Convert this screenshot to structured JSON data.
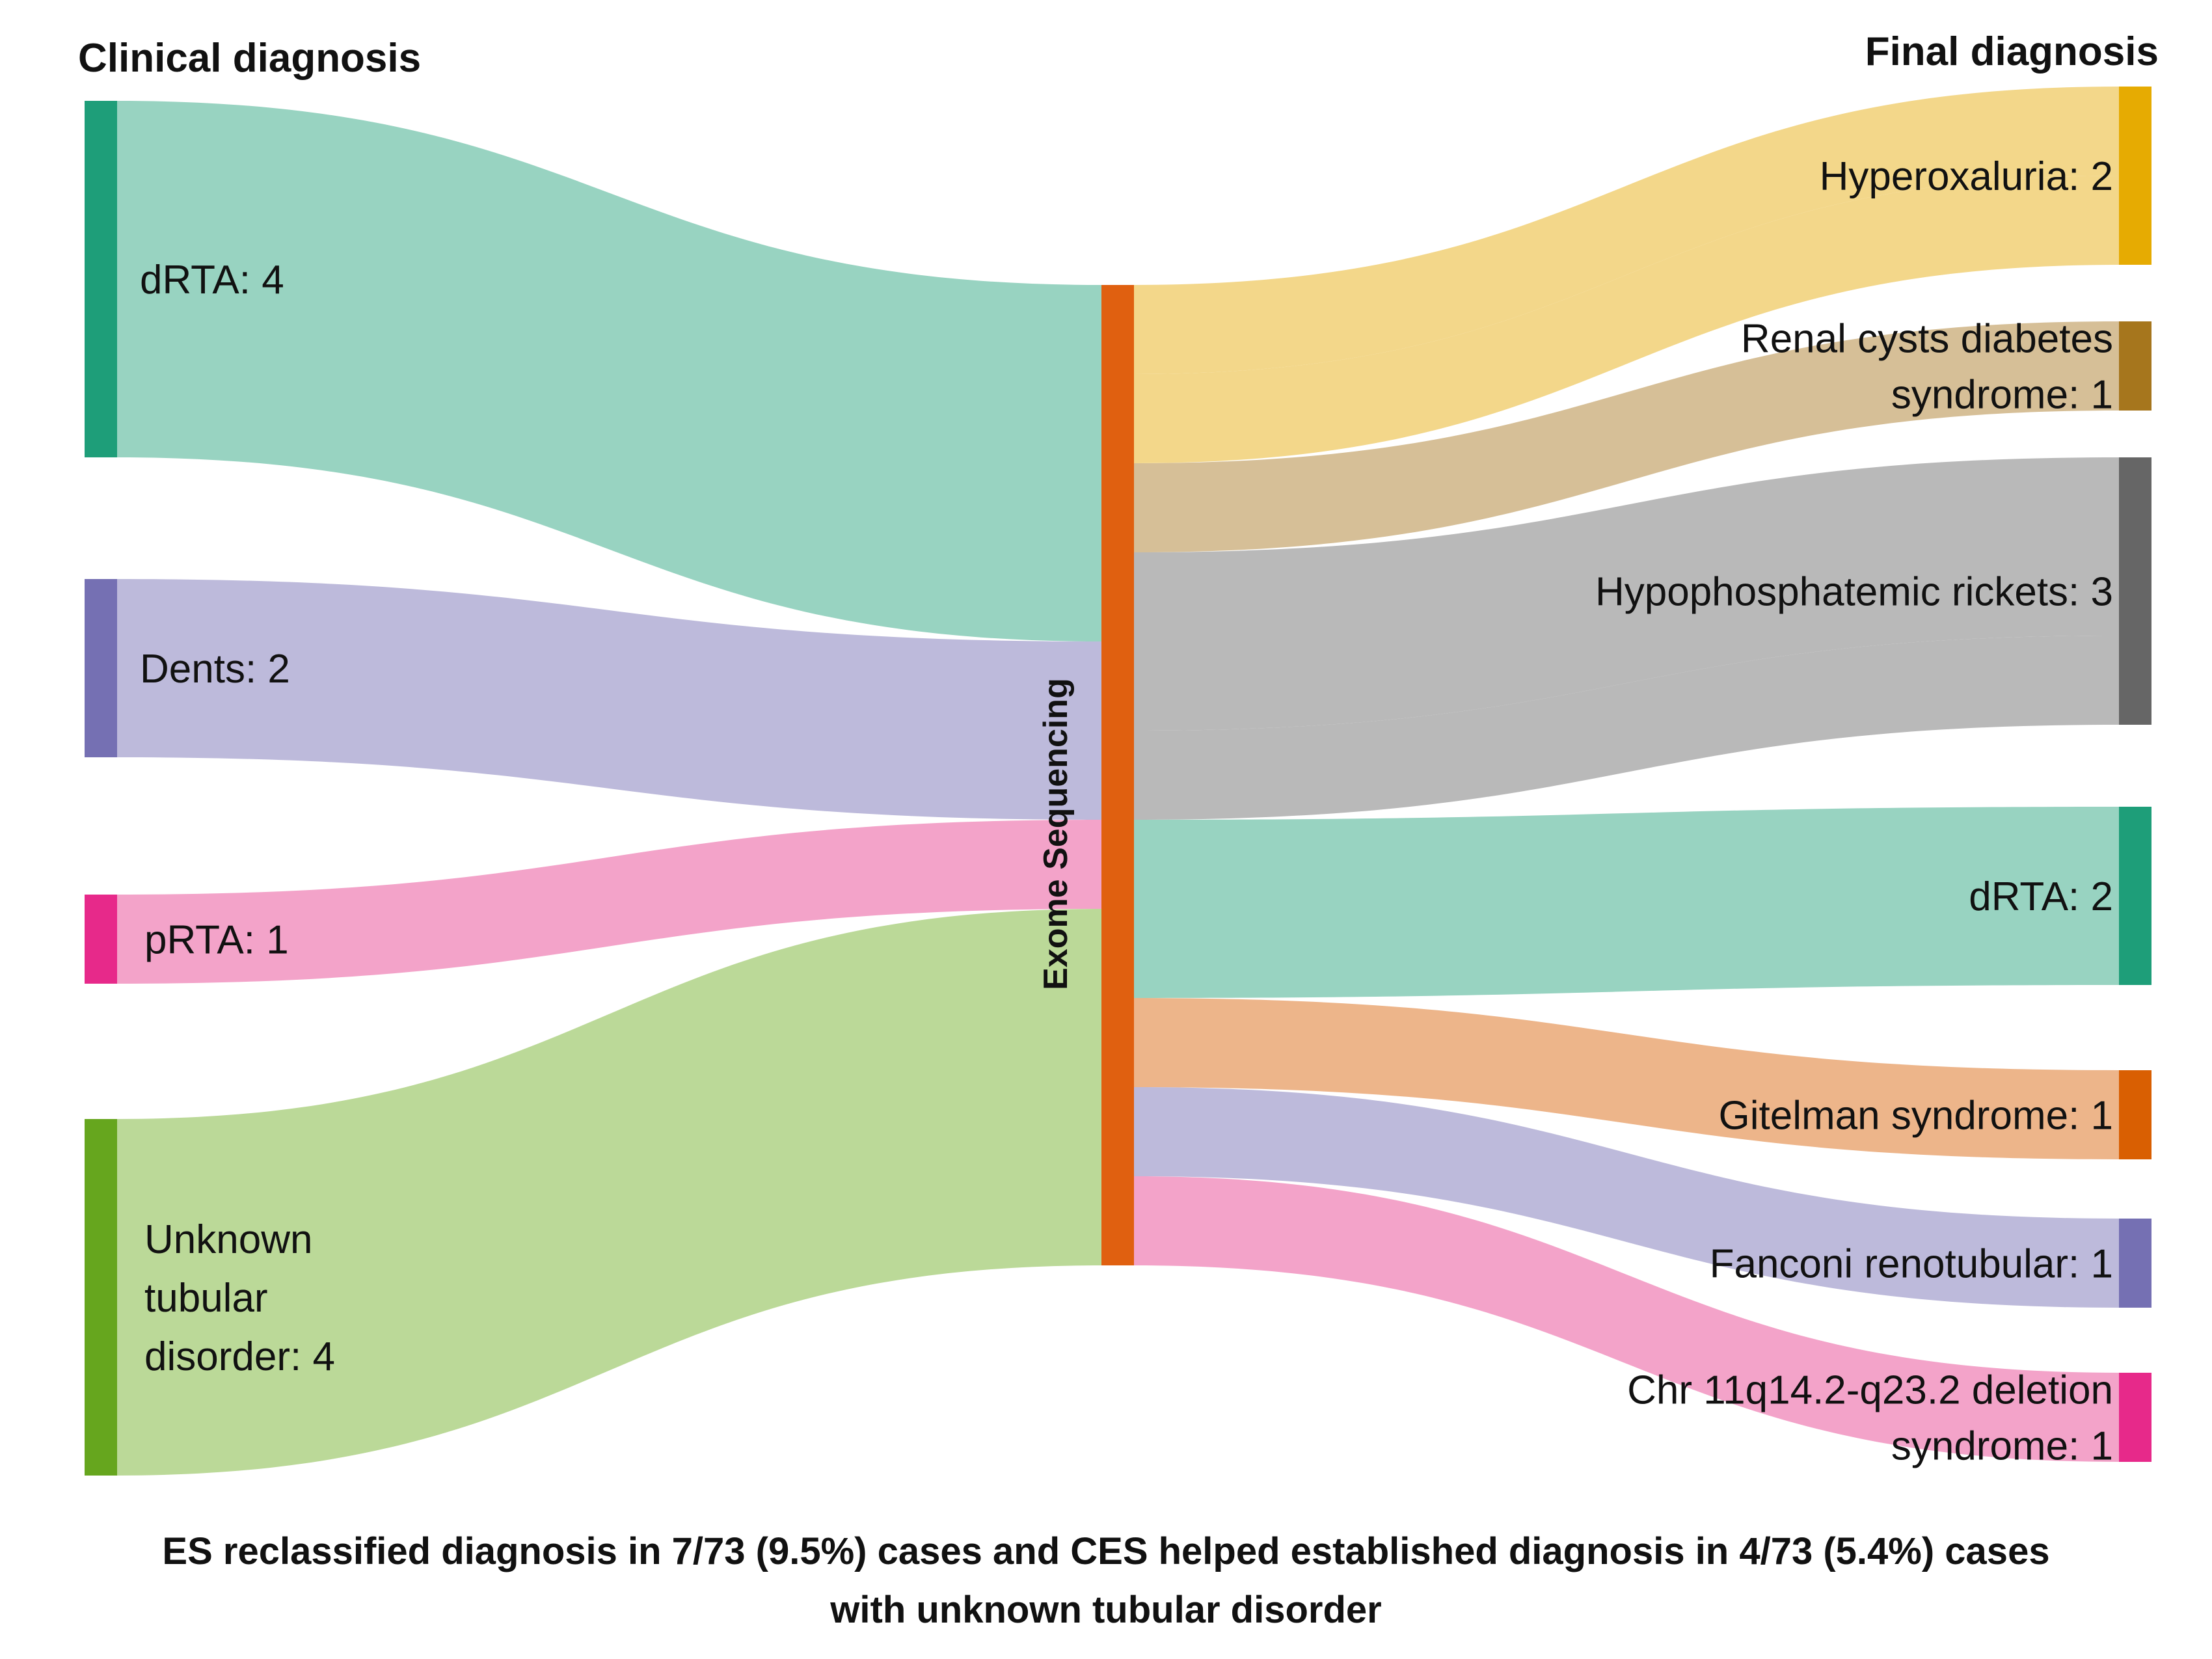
{
  "headers": {
    "left": "Clinical diagnosis",
    "right": "Final diagnosis"
  },
  "middle_label": "Exome Sequencing",
  "colors": {
    "middle": "#E06010",
    "dRTA": "#1E9E79",
    "Dents": "#7570B3",
    "pRTA": "#E7298A",
    "unknown": "#66A61E",
    "hyperoxaluria": "#E6AB02",
    "renal_cysts": "#A6761D",
    "hypophosphatemic": "#666666",
    "gitelman": "#D95F02"
  },
  "sources": [
    {
      "key": "drta_src",
      "label_lines": [
        "dRTA: 4"
      ],
      "value": 4,
      "color": "#1E9E79",
      "flow_color": "#8FCFBC"
    },
    {
      "key": "dents_src",
      "label_lines": [
        "Dents: 2"
      ],
      "value": 2,
      "color": "#7570B3",
      "flow_color": "#B7B4D8"
    },
    {
      "key": "prta_src",
      "label_lines": [
        "pRTA: 1"
      ],
      "value": 1,
      "color": "#E7298A",
      "flow_color": "#F29BC4"
    },
    {
      "key": "unknown_src",
      "label_lines": [
        "Unknown",
        "tubular",
        "disorder: 4"
      ],
      "value": 4,
      "color": "#66A61E",
      "flow_color": "#B5D68F"
    }
  ],
  "targets": [
    {
      "key": "hyperoxaluria",
      "label_lines": [
        "Hyperoxaluria: 2"
      ],
      "value": 2,
      "color": "#E6AB02",
      "flow_color": "#F2D480"
    },
    {
      "key": "renal_cysts",
      "label_lines": [
        "Renal cysts diabetes",
        "syndrome: 1"
      ],
      "value": 1,
      "color": "#A6761D",
      "flow_color": "#D3BA8E"
    },
    {
      "key": "hypophosphatemic",
      "label_lines": [
        "Hypophosphatemic rickets: 3"
      ],
      "value": 3,
      "color": "#666666",
      "flow_color": "#B3B3B3"
    },
    {
      "key": "drta_tgt",
      "label_lines": [
        "dRTA: 2"
      ],
      "value": 2,
      "color": "#1E9E79",
      "flow_color": "#8FCFBC"
    },
    {
      "key": "gitelman",
      "label_lines": [
        "Gitelman syndrome: 1"
      ],
      "value": 1,
      "color": "#D95F02",
      "flow_color": "#ECAF80"
    },
    {
      "key": "fanconi",
      "label_lines": [
        "Fanconi renotubular: 1"
      ],
      "value": 1,
      "color": "#7570B3",
      "flow_color": "#B7B4D8"
    },
    {
      "key": "chr11",
      "label_lines": [
        "Chr 11q14.2-q23.2 deletion",
        "syndrome: 1"
      ],
      "value": 1,
      "color": "#E7298A",
      "flow_color": "#F29BC4"
    }
  ],
  "right_flows": [
    {
      "target": "hyperoxaluria",
      "value": 1
    },
    {
      "target": "hyperoxaluria",
      "value": 1
    },
    {
      "target": "renal_cysts",
      "value": 1
    },
    {
      "target": "hypophosphatemic",
      "value": 2
    },
    {
      "target": "hypophosphatemic",
      "value": 1
    },
    {
      "target": "drta_tgt",
      "value": 2
    },
    {
      "target": "gitelman",
      "value": 1
    },
    {
      "target": "fanconi",
      "value": 1
    },
    {
      "target": "chr11",
      "value": 1
    }
  ],
  "caption": {
    "line1": "ES reclassified diagnosis in 7/73 (9.5%) cases and CES helped established diagnosis in 4/73 (5.4%) cases",
    "line2": "with unknown tubular disorder"
  }
}
